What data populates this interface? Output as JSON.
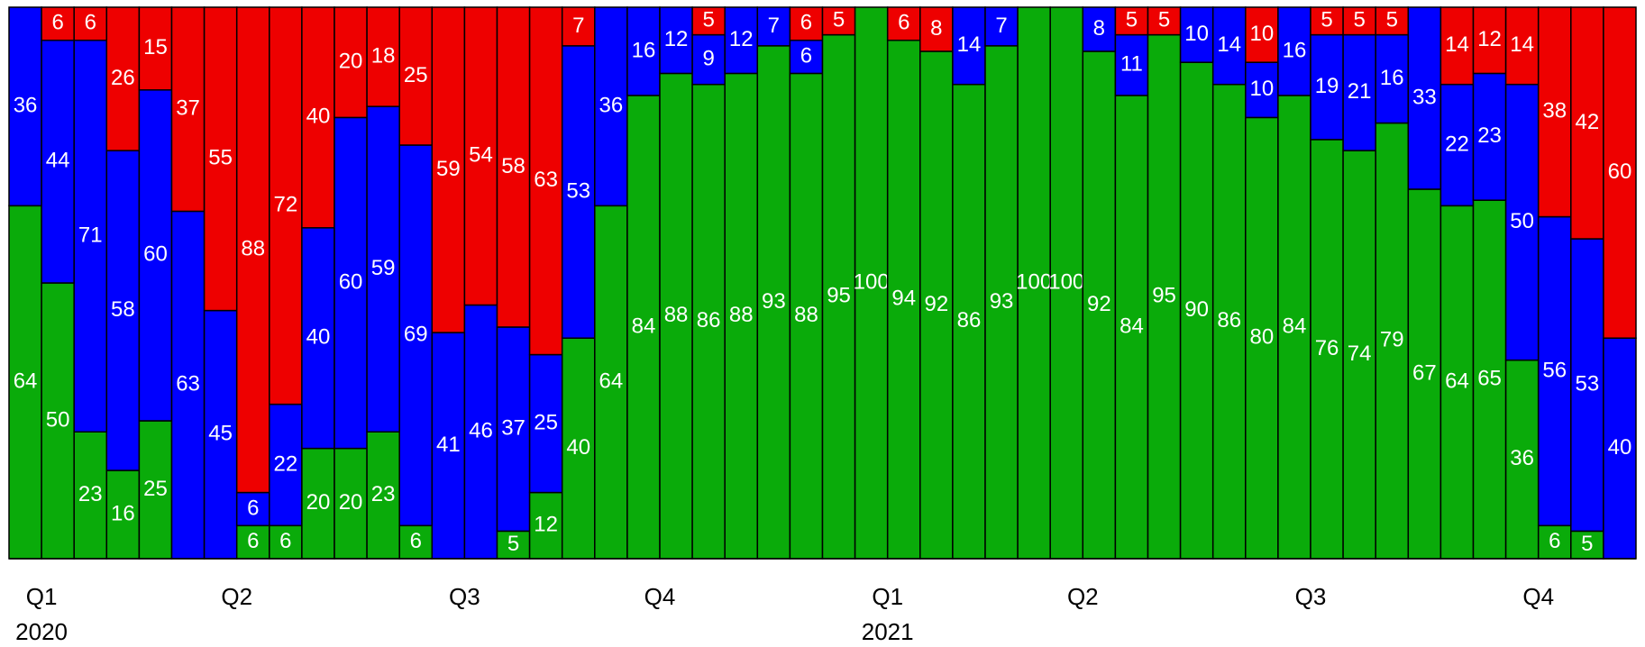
{
  "chart_data": {
    "type": "stacked-bar",
    "categories": [
      "Q1",
      null,
      null,
      null,
      null,
      null,
      "Q2",
      null,
      null,
      null,
      null,
      null,
      null,
      "Q3",
      null,
      null,
      null,
      null,
      null,
      "Q4",
      null,
      null,
      null,
      null,
      null,
      null,
      "Q1",
      null,
      null,
      null,
      null,
      null,
      "Q2",
      null,
      null,
      null,
      null,
      null,
      null,
      "Q3",
      null,
      null,
      null,
      null,
      null,
      null,
      "Q4",
      null,
      null,
      null
    ],
    "years": [
      "2020",
      null,
      null,
      null,
      null,
      null,
      null,
      null,
      null,
      null,
      null,
      null,
      null,
      null,
      null,
      null,
      null,
      null,
      null,
      null,
      null,
      null,
      null,
      null,
      null,
      null,
      "2021",
      null,
      null,
      null,
      null,
      null,
      null,
      null,
      null,
      null,
      null,
      null,
      null,
      null,
      null,
      null,
      null,
      null,
      null,
      null,
      null,
      null,
      null,
      null
    ],
    "ylim": [
      0,
      100
    ],
    "series": [
      {
        "color": "#0aab0a",
        "values": [
          64,
          50,
          23,
          16,
          25,
          0,
          0,
          6,
          6,
          20,
          20,
          23,
          6,
          0,
          0,
          5,
          12,
          40,
          64,
          84,
          88,
          86,
          88,
          93,
          88,
          95,
          100,
          94,
          92,
          86,
          93,
          100,
          100,
          92,
          84,
          95,
          90,
          86,
          80,
          84,
          76,
          74,
          79,
          67,
          64,
          65,
          36,
          6,
          5,
          0
        ]
      },
      {
        "color": "#0000ff",
        "values": [
          36,
          44,
          71,
          58,
          60,
          63,
          45,
          6,
          22,
          40,
          60,
          59,
          69,
          41,
          46,
          37,
          25,
          53,
          36,
          16,
          12,
          9,
          12,
          7,
          6,
          0,
          0,
          0,
          0,
          14,
          7,
          0,
          0,
          8,
          11,
          0,
          10,
          14,
          10,
          16,
          19,
          21,
          16,
          33,
          22,
          23,
          50,
          56,
          53,
          40
        ]
      },
      {
        "color": "#ee0000",
        "values": [
          0,
          6,
          6,
          26,
          15,
          37,
          55,
          88,
          72,
          40,
          20,
          18,
          25,
          59,
          54,
          58,
          63,
          7,
          0,
          0,
          0,
          5,
          0,
          0,
          6,
          5,
          0,
          6,
          8,
          0,
          0,
          0,
          0,
          0,
          5,
          5,
          0,
          0,
          10,
          0,
          5,
          5,
          5,
          0,
          14,
          12,
          14,
          38,
          42,
          60
        ]
      }
    ]
  }
}
